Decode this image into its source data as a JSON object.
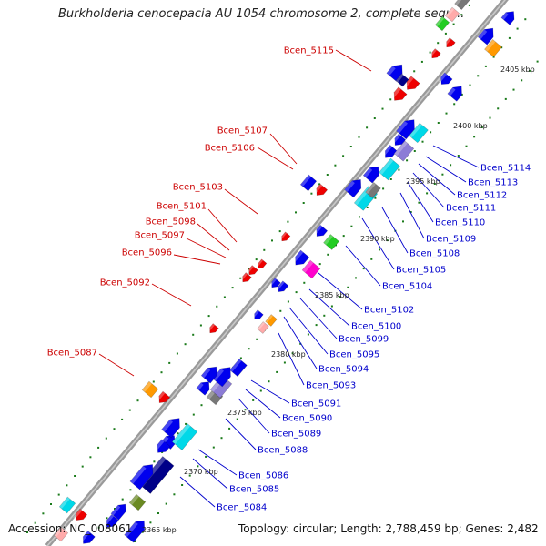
{
  "title": "Burkholderia cenocepacia AU 1054 chromosome 2, complete sequ...",
  "footer": {
    "accession": "Accession: NC_008061",
    "topology": "Topology: circular; Length: 2,788,459 bp; Genes: 2,482"
  },
  "scale_labels": [
    "2405 kbp",
    "2400 kbp",
    "2395 kbp",
    "2390 kbp",
    "2385 kbp",
    "2380 kbp",
    "2375 kbp",
    "2370 kbp",
    "2365 kbp"
  ],
  "reverse_genes": [
    "Bcen_5115",
    "Bcen_5107",
    "Bcen_5106",
    "Bcen_5103",
    "Bcen_5101",
    "Bcen_5098",
    "Bcen_5097",
    "Bcen_5096",
    "Bcen_5092",
    "Bcen_5087"
  ],
  "forward_genes": [
    "Bcen_5114",
    "Bcen_5113",
    "Bcen_5112",
    "Bcen_5111",
    "Bcen_5110",
    "Bcen_5109",
    "Bcen_5108",
    "Bcen_5105",
    "Bcen_5104",
    "Bcen_5102",
    "Bcen_5100",
    "Bcen_5099",
    "Bcen_5095",
    "Bcen_5094",
    "Bcen_5093",
    "Bcen_5091",
    "Bcen_5090",
    "Bcen_5089",
    "Bcen_5088",
    "Bcen_5086",
    "Bcen_5085",
    "Bcen_5084"
  ],
  "colors": {
    "backbone": "#888888",
    "reverse_label": "#cc0000",
    "forward_label": "#0000cc",
    "gc_dots": "#1a7a1a",
    "gene_blue": "#0000ee",
    "gene_red": "#ee0000",
    "gene_cyan": "#00d8e8",
    "gene_lavender": "#8c7cd6",
    "gene_orange": "#ff9900",
    "gene_magenta": "#ff00cc",
    "gene_green": "#22cc22",
    "gene_olive": "#6a8a22",
    "gene_navy": "#000088",
    "gene_gray": "#777777",
    "gene_pink": "#ffaaaa"
  }
}
